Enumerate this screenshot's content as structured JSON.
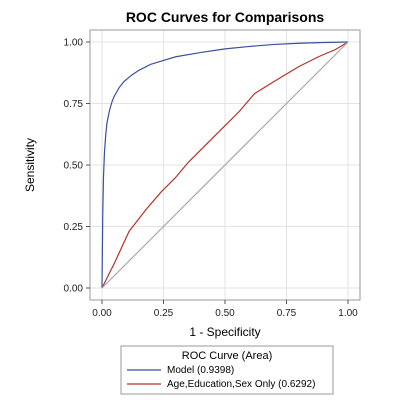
{
  "chart_data": {
    "type": "line",
    "title": "ROC Curves for Comparisons",
    "xlabel": "1 - Specificity",
    "ylabel": "Sensitivity",
    "xlim": [
      0,
      1
    ],
    "ylim": [
      0,
      1
    ],
    "xticks": [
      "0.00",
      "0.25",
      "0.50",
      "0.75",
      "1.00"
    ],
    "yticks": [
      "0.00",
      "0.25",
      "0.50",
      "0.75",
      "1.00"
    ],
    "grid": true,
    "legend": {
      "title": "ROC Curve (Area)",
      "placement": "bottom",
      "entries": [
        "Model  (0.9398)",
        "Age,Education,Sex Only  (0.6292)"
      ]
    },
    "series": [
      {
        "name": "Model  (0.9398)",
        "color": "#3a4fa0",
        "x": [
          0,
          0.003,
          0.006,
          0.01,
          0.015,
          0.02,
          0.03,
          0.04,
          0.05,
          0.07,
          0.09,
          0.12,
          0.15,
          0.2,
          0.25,
          0.3,
          0.4,
          0.5,
          0.6,
          0.7,
          0.8,
          0.9,
          1.0
        ],
        "y": [
          0,
          0.3,
          0.45,
          0.55,
          0.62,
          0.67,
          0.72,
          0.755,
          0.78,
          0.815,
          0.84,
          0.865,
          0.885,
          0.91,
          0.925,
          0.94,
          0.957,
          0.972,
          0.982,
          0.99,
          0.995,
          0.998,
          1.0
        ]
      },
      {
        "name": "Age,Education,Sex Only  (0.6292)",
        "color": "#b5322a",
        "x": [
          0,
          0.05,
          0.11,
          0.18,
          0.24,
          0.3,
          0.35,
          0.42,
          0.5,
          0.56,
          0.62,
          0.7,
          0.8,
          0.88,
          0.95,
          1.0
        ],
        "y": [
          0,
          0.1,
          0.23,
          0.32,
          0.39,
          0.45,
          0.51,
          0.58,
          0.66,
          0.72,
          0.79,
          0.84,
          0.9,
          0.94,
          0.97,
          1.0
        ]
      },
      {
        "name": "",
        "color": "#a9a9a9",
        "x": [
          0,
          1
        ],
        "y": [
          0,
          1
        ]
      }
    ]
  }
}
